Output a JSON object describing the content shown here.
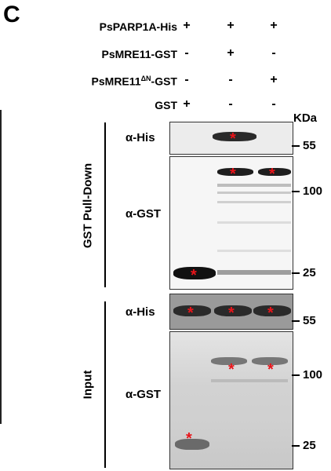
{
  "panel_letter": "C",
  "conditions": [
    {
      "label": "PsPARP1A-His",
      "signs": [
        "+",
        "+",
        "+"
      ]
    },
    {
      "label": "PsMRE11-GST",
      "signs": [
        "-",
        "+",
        "-"
      ]
    },
    {
      "label": "PsMRE11",
      "sup": "ΔN",
      "suffix": "-GST",
      "signs": [
        "-",
        "-",
        "+"
      ]
    },
    {
      "label": "GST",
      "signs": [
        "+",
        "-",
        "-"
      ]
    }
  ],
  "kda_label": "KDa",
  "sections": [
    {
      "label": "GST Pull-Down"
    },
    {
      "label": "Input"
    }
  ],
  "panels": [
    {
      "antibody": "α-His",
      "markers": [
        "55"
      ]
    },
    {
      "antibody": "α-GST",
      "markers": [
        "100",
        "25"
      ]
    },
    {
      "antibody": "α-His",
      "markers": [
        "55"
      ]
    },
    {
      "antibody": "α-GST",
      "markers": [
        "100",
        "25"
      ]
    }
  ],
  "star": "*"
}
